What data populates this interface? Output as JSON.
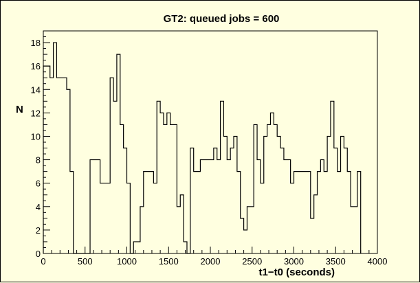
{
  "chart_data": {
    "type": "histogram",
    "title": "GT2: queued jobs = 600",
    "xlabel": "t1−t0 (seconds)",
    "ylabel": "N",
    "xlim": [
      0,
      4000
    ],
    "ylim": [
      0,
      19
    ],
    "bin_width": 40,
    "x_ticks": [
      0,
      500,
      1000,
      1500,
      2000,
      2500,
      3000,
      3500,
      4000
    ],
    "y_ticks": [
      0,
      2,
      4,
      6,
      8,
      10,
      12,
      14,
      16,
      18
    ],
    "grid": false,
    "background_color": "#ffffe0",
    "line_color": "#000000",
    "values": [
      16,
      16,
      15,
      18,
      15,
      15,
      15,
      14,
      7,
      0,
      0,
      0,
      0,
      0,
      8,
      8,
      8,
      6,
      6,
      6,
      15,
      13,
      17,
      11,
      9,
      6,
      0,
      1,
      1,
      4,
      7,
      7,
      7,
      6,
      13,
      12,
      11,
      12,
      11,
      11,
      4,
      5,
      1,
      0,
      9,
      7,
      7,
      8,
      8,
      8,
      8,
      9,
      8,
      13,
      10,
      8,
      9,
      10,
      7,
      3,
      2,
      4,
      4,
      11,
      8,
      6,
      10,
      11,
      12,
      11,
      10,
      9,
      8,
      8,
      6,
      7,
      7,
      7,
      7,
      7,
      3,
      5,
      7,
      8,
      7,
      10,
      13,
      9,
      7,
      10,
      9,
      7,
      4,
      4,
      7
    ]
  }
}
